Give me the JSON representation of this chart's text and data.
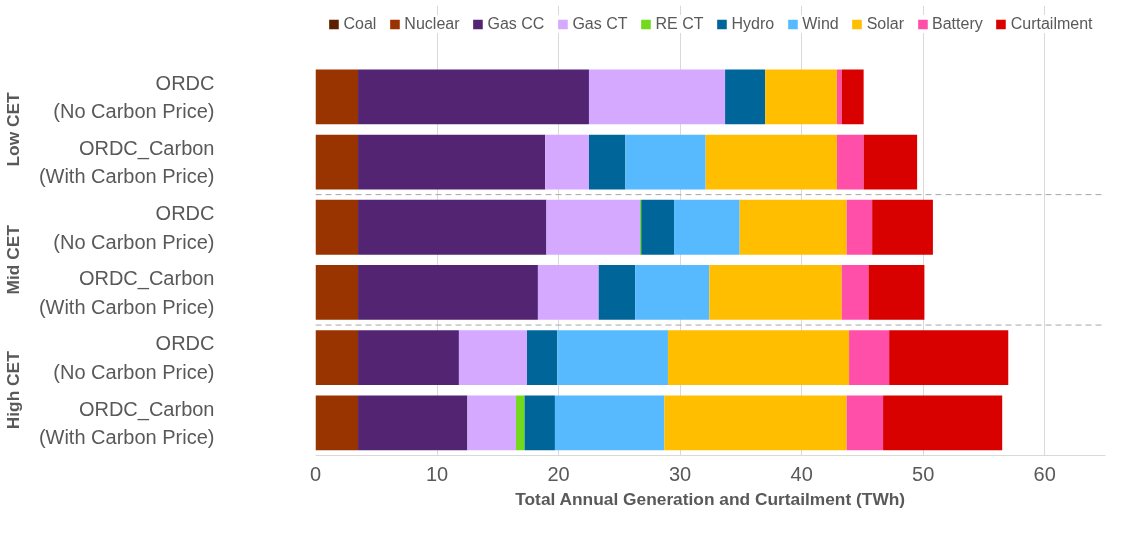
{
  "chart_data": {
    "type": "bar",
    "orientation": "horizontal",
    "stacked": true,
    "xlabel": "Total Annual Generation and Curtailment (TWh)",
    "categories": [
      "ORDC\n(No Carbon Price)",
      "ORDC_Carbon\n(With Carbon Price)",
      "ORDC\n(No Carbon Price)",
      "ORDC_Carbon\n(With Carbon Price)",
      "ORDC\n(No Carbon Price)",
      "ORDC_Carbon\n(With Carbon Price)"
    ],
    "annotations": [
      "Low CET",
      "Mid CET",
      "High CET"
    ],
    "series": [
      {
        "name": "Coal",
        "color": "#5c1f00",
        "values": [
          0,
          0,
          0,
          0,
          0,
          0
        ]
      },
      {
        "name": "Nuclear",
        "color": "#993300",
        "values": [
          3.5,
          3.5,
          3.5,
          3.5,
          3.5,
          3.5
        ]
      },
      {
        "name": "Gas CC",
        "color": "#532472",
        "values": [
          19.0,
          15.4,
          15.5,
          14.8,
          8.3,
          9.0
        ]
      },
      {
        "name": "Gas CT",
        "color": "#d5a9ff",
        "values": [
          11.2,
          3.6,
          7.7,
          5.0,
          5.6,
          4.0
        ]
      },
      {
        "name": "RE CT",
        "color": "#72d91c",
        "values": [
          0,
          0,
          0.1,
          0,
          0,
          0.7
        ]
      },
      {
        "name": "Hydro",
        "color": "#006699",
        "values": [
          3.3,
          3.0,
          2.7,
          3.0,
          2.5,
          2.5
        ]
      },
      {
        "name": "Wind",
        "color": "#57baff",
        "values": [
          0,
          6.6,
          5.4,
          6.1,
          9.1,
          9.0
        ]
      },
      {
        "name": "Solar",
        "color": "#ffbf00",
        "values": [
          5.9,
          10.8,
          8.8,
          10.9,
          14.9,
          15.0
        ]
      },
      {
        "name": "Battery",
        "color": "#ff4fa8",
        "values": [
          0.4,
          2.2,
          2.1,
          2.2,
          3.3,
          3.0
        ]
      },
      {
        "name": "Curtailment",
        "color": "#d90000",
        "values": [
          1.8,
          4.4,
          5.0,
          4.6,
          9.8,
          9.8
        ]
      }
    ],
    "xlim": [
      0,
      65
    ],
    "xticks": [
      0,
      10,
      20,
      30,
      40,
      50,
      60
    ],
    "grid": "x",
    "legend": "top"
  }
}
